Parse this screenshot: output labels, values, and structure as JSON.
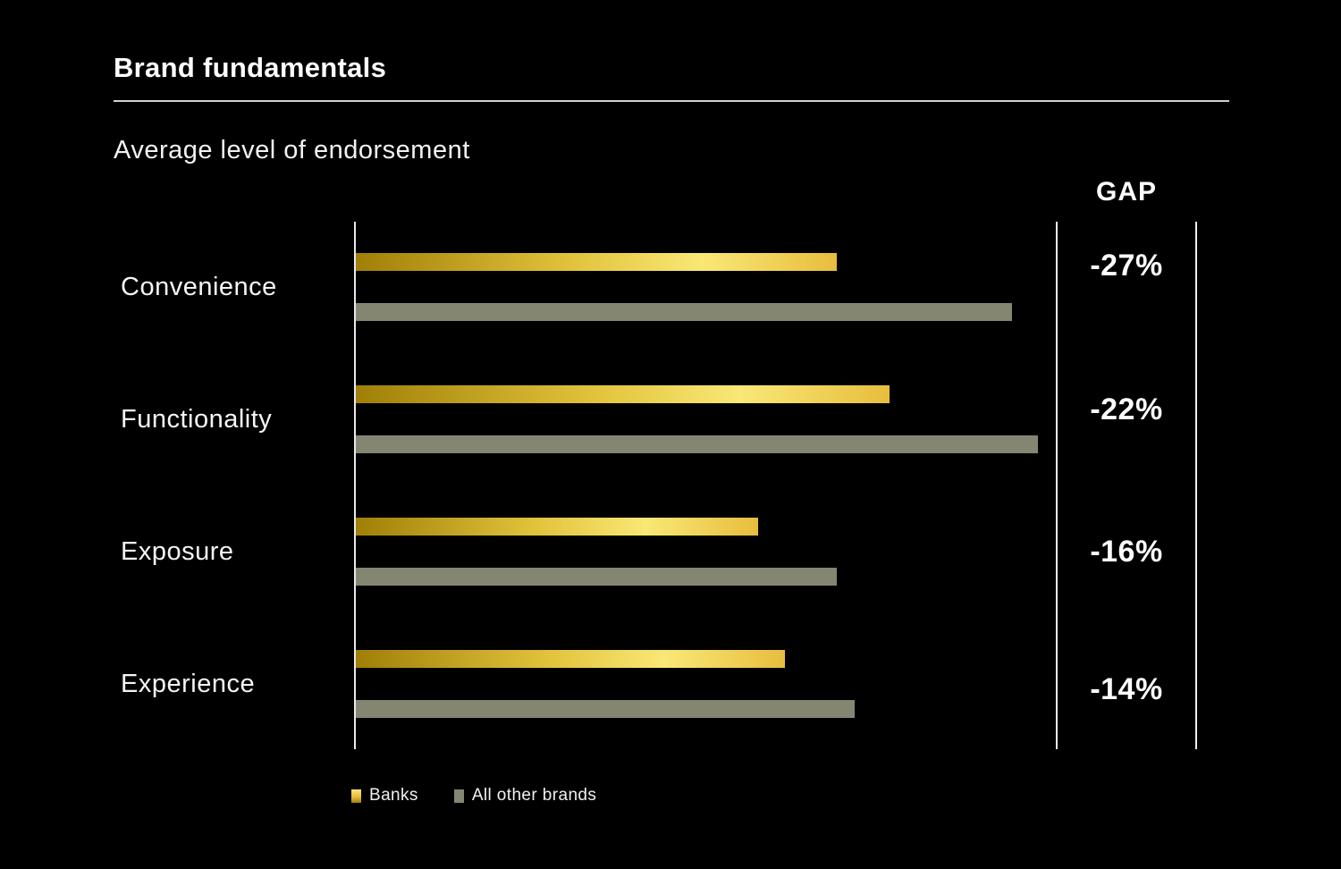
{
  "header": {
    "title": "Brand fundamentals",
    "subtitle": "Average level of endorsement"
  },
  "gap_column": {
    "header": "GAP",
    "values": [
      "-27%",
      "-22%",
      "-16%",
      "-14%"
    ]
  },
  "legend": {
    "items": [
      {
        "label": "Banks"
      },
      {
        "label": "All other brands"
      }
    ]
  },
  "colors": {
    "background": "#000000",
    "text": "#ffffff",
    "banks_gradient": [
      "#a07f08",
      "#e2c33c",
      "#f9e876",
      "#e8bd3e"
    ],
    "other_brands": "#858672",
    "axis_line": "#e9e9e9",
    "underline": "#cfcfcf"
  },
  "chart_data": {
    "type": "bar",
    "orientation": "horizontal",
    "title": "Average level of endorsement",
    "categories": [
      "Convenience",
      "Functionality",
      "Exposure",
      "Experience"
    ],
    "series": [
      {
        "name": "Banks",
        "values": [
          55,
          61,
          46,
          49
        ]
      },
      {
        "name": "All other brands",
        "values": [
          75,
          78,
          55,
          57
        ]
      }
    ],
    "gaps": [
      "-27%",
      "-22%",
      "-16%",
      "-14%"
    ],
    "gap_label": "GAP",
    "xlim": [
      0,
      80
    ],
    "grid": false,
    "legend_position": "bottom"
  }
}
